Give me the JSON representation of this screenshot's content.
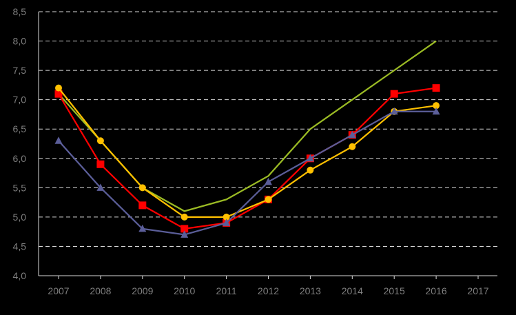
{
  "chart_data": {
    "type": "line",
    "categories": [
      "2007",
      "2008",
      "2009",
      "2010",
      "2011",
      "2012",
      "2013",
      "2014",
      "2015",
      "2016",
      "2017"
    ],
    "ylim": [
      4.0,
      8.5
    ],
    "y_ticks": [
      4.0,
      4.5,
      5.0,
      5.5,
      6.0,
      6.5,
      7.0,
      7.5,
      8.0,
      8.5
    ],
    "y_tick_labels": [
      "4,0",
      "4,5",
      "5,0",
      "5,5",
      "6,0",
      "6,5",
      "7,0",
      "7,5",
      "8,0",
      "8,5"
    ],
    "grid": "horizontal dashed",
    "background": "#000000",
    "series": [
      {
        "color": "#9bbb24",
        "marker": "none",
        "values": [
          7.1,
          6.3,
          5.5,
          5.1,
          5.3,
          5.7,
          6.5,
          7.0,
          7.5,
          8.0,
          null
        ]
      },
      {
        "color": "#ff0000",
        "marker": "square",
        "values": [
          7.1,
          5.9,
          5.2,
          4.8,
          4.9,
          5.3,
          6.0,
          6.4,
          7.1,
          7.2,
          null
        ]
      },
      {
        "color": "#ffc000",
        "marker": "circle",
        "values": [
          7.2,
          6.3,
          5.5,
          5.0,
          5.0,
          5.3,
          5.8,
          6.2,
          6.8,
          6.9,
          null
        ]
      },
      {
        "color": "#5b5e99",
        "marker": "triangle",
        "values": [
          6.3,
          5.5,
          4.8,
          4.7,
          4.9,
          5.6,
          6.0,
          6.4,
          6.8,
          6.8,
          null
        ]
      }
    ]
  }
}
